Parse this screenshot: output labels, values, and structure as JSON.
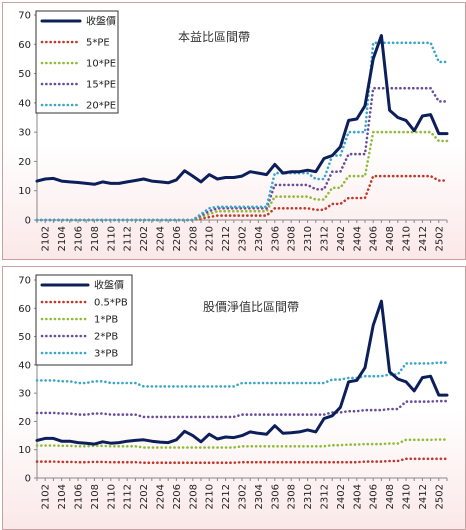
{
  "chart_data": [
    {
      "type": "line",
      "title": "本益比區間帶",
      "x": [
        "2101",
        "2102",
        "2103",
        "2104",
        "2105",
        "2106",
        "2107",
        "2108",
        "2109",
        "2110",
        "2111",
        "2112",
        "2201",
        "2202",
        "2203",
        "2204",
        "2205",
        "2206",
        "2207",
        "2208",
        "2209",
        "2210",
        "2211",
        "2212",
        "2301",
        "2302",
        "2303",
        "2304",
        "2305",
        "2306",
        "2307",
        "2308",
        "2309",
        "2310",
        "2311",
        "2312",
        "2401",
        "2402",
        "2403",
        "2404",
        "2405",
        "2406",
        "2407",
        "2408",
        "2409",
        "2410",
        "2411",
        "2412",
        "2501",
        "2502",
        "2503"
      ],
      "x_tick_labels": [
        "2102",
        "2104",
        "2106",
        "2108",
        "2110",
        "2112",
        "2202",
        "2204",
        "2206",
        "2208",
        "2210",
        "2212",
        "2302",
        "2304",
        "2306",
        "2308",
        "2310",
        "2312",
        "2402",
        "2404",
        "2406",
        "2408",
        "2410",
        "2412",
        "2502"
      ],
      "ylim": [
        0,
        70
      ],
      "yticks": [
        0,
        10,
        20,
        30,
        40,
        50,
        60,
        70
      ],
      "legend_placement": "top-left",
      "series": [
        {
          "name": "收盤價",
          "color": "#0c1f5a",
          "style": "solid",
          "values": [
            13.3,
            14,
            14.2,
            13.3,
            13,
            12.8,
            12.5,
            12.2,
            13,
            12.5,
            12.5,
            13,
            13.5,
            14,
            13.3,
            13,
            12.7,
            13.7,
            16.8,
            15,
            13,
            15.5,
            14,
            14.5,
            14.5,
            15,
            16.5,
            16,
            15.5,
            19,
            16,
            16.5,
            16.5,
            17,
            16.5,
            21,
            22,
            25,
            34,
            34.5,
            39,
            55,
            63,
            37.5,
            35,
            34,
            30.5,
            35.5,
            36,
            29.5,
            29.5
          ]
        },
        {
          "name": "5*PE",
          "color": "#c0392b",
          "style": "dotted",
          "values": [
            0,
            0,
            0,
            0,
            0,
            0,
            0,
            0,
            0,
            0,
            0,
            0,
            0,
            0,
            0,
            0,
            0,
            0,
            0,
            0,
            0.5,
            1,
            1.5,
            1.5,
            1.5,
            1.5,
            1.5,
            1.5,
            1.5,
            4,
            4,
            4,
            4,
            4,
            3.5,
            3.5,
            5.5,
            5.5,
            7.5,
            7.5,
            7.5,
            15,
            15,
            15,
            15,
            15,
            15,
            15,
            15,
            13.5,
            13.5
          ]
        },
        {
          "name": "10*PE",
          "color": "#8fbc3a",
          "style": "dotted",
          "values": [
            0,
            0,
            0,
            0,
            0,
            0,
            0,
            0,
            0,
            0,
            0,
            0,
            0,
            0,
            0,
            0,
            0,
            0,
            0,
            0,
            1,
            2,
            3,
            3,
            3,
            3,
            3,
            3,
            3,
            8,
            8,
            8,
            8,
            8,
            7,
            7,
            11,
            11,
            15,
            15,
            15,
            30,
            30,
            30,
            30,
            30,
            30,
            30,
            30,
            27,
            27
          ]
        },
        {
          "name": "15*PE",
          "color": "#6b4c9a",
          "style": "dotted",
          "values": [
            0,
            0,
            0,
            0,
            0,
            0,
            0,
            0,
            0,
            0,
            0,
            0,
            0,
            0,
            0,
            0,
            0,
            0,
            0,
            0,
            1.5,
            3,
            4,
            4,
            4,
            4,
            4,
            4,
            4,
            12,
            12,
            12,
            12,
            12,
            10.5,
            10.5,
            16.5,
            16.5,
            22.5,
            22.5,
            22.5,
            45,
            45,
            45,
            45,
            45,
            45,
            45,
            45,
            40.5,
            40.5
          ]
        },
        {
          "name": "20*PE",
          "color": "#3aa6c8",
          "style": "dotted",
          "values": [
            0,
            0,
            0,
            0,
            0,
            0,
            0,
            0,
            0,
            0,
            0,
            0,
            0,
            0,
            0,
            0,
            0,
            0,
            0,
            0,
            2,
            4,
            4.5,
            4.5,
            4.5,
            4.5,
            4.5,
            4.5,
            4.5,
            16,
            16,
            16,
            16,
            16,
            14,
            14,
            22,
            22,
            30,
            30,
            30,
            60.5,
            60.5,
            60.5,
            60.5,
            60.5,
            60.5,
            60.5,
            60.5,
            54,
            54
          ]
        }
      ]
    },
    {
      "type": "line",
      "title": "股價淨值比區間帶",
      "x": [
        "2101",
        "2102",
        "2103",
        "2104",
        "2105",
        "2106",
        "2107",
        "2108",
        "2109",
        "2110",
        "2111",
        "2112",
        "2201",
        "2202",
        "2203",
        "2204",
        "2205",
        "2206",
        "2207",
        "2208",
        "2209",
        "2210",
        "2211",
        "2212",
        "2301",
        "2302",
        "2303",
        "2304",
        "2305",
        "2306",
        "2307",
        "2308",
        "2309",
        "2310",
        "2311",
        "2312",
        "2401",
        "2402",
        "2403",
        "2404",
        "2405",
        "2406",
        "2407",
        "2408",
        "2409",
        "2410",
        "2411",
        "2412",
        "2501",
        "2502",
        "2503"
      ],
      "x_tick_labels": [
        "2102",
        "2104",
        "2106",
        "2108",
        "2110",
        "2112",
        "2202",
        "2204",
        "2206",
        "2208",
        "2210",
        "2212",
        "2302",
        "2304",
        "2306",
        "2308",
        "2310",
        "2312",
        "2402",
        "2404",
        "2406",
        "2408",
        "2410",
        "2412",
        "2502"
      ],
      "ylim": [
        0,
        70
      ],
      "yticks": [
        0,
        10,
        20,
        30,
        40,
        50,
        60,
        70
      ],
      "legend_placement": "top-left",
      "series": [
        {
          "name": "收盤價",
          "color": "#0c1f5a",
          "style": "solid",
          "values": [
            13.3,
            14,
            14,
            13,
            13,
            12.5,
            12.3,
            12,
            12.8,
            12.3,
            12.5,
            13,
            13.3,
            13.5,
            13,
            12.7,
            12.5,
            13.5,
            16.5,
            15,
            12.8,
            15.5,
            13.8,
            14.5,
            14.3,
            15,
            16.3,
            15.8,
            15.5,
            18.5,
            15.8,
            16,
            16.3,
            17,
            16.3,
            21,
            22,
            25,
            34,
            34.5,
            39,
            54,
            62.5,
            37.5,
            35,
            34,
            30.8,
            35.5,
            36,
            29.3,
            29.3
          ]
        },
        {
          "name": "0.5*PB",
          "color": "#c0392b",
          "style": "dotted",
          "values": [
            5.8,
            5.8,
            5.8,
            5.7,
            5.7,
            5.6,
            5.6,
            5.7,
            5.7,
            5.6,
            5.6,
            5.6,
            5.6,
            5.4,
            5.4,
            5.4,
            5.4,
            5.4,
            5.4,
            5.4,
            5.4,
            5.4,
            5.4,
            5.4,
            5.4,
            5.6,
            5.6,
            5.6,
            5.6,
            5.6,
            5.6,
            5.6,
            5.6,
            5.6,
            5.6,
            5.6,
            5.6,
            5.6,
            5.6,
            5.6,
            5.8,
            5.8,
            5.8,
            6,
            6,
            6.8,
            6.8,
            6.8,
            6.8,
            6.8,
            6.8
          ]
        },
        {
          "name": "1*PB",
          "color": "#8fbc3a",
          "style": "dotted",
          "values": [
            11.5,
            11.5,
            11.5,
            11.4,
            11.4,
            11.2,
            11.2,
            11.4,
            11.4,
            11.2,
            11.2,
            11.2,
            11.2,
            10.8,
            10.8,
            10.8,
            10.8,
            10.8,
            10.8,
            10.8,
            10.8,
            10.8,
            10.8,
            10.8,
            10.8,
            11.2,
            11.2,
            11.2,
            11.2,
            11.2,
            11.2,
            11.2,
            11.2,
            11.2,
            11.2,
            11.2,
            11.6,
            11.6,
            11.8,
            11.8,
            12,
            12,
            12,
            12.2,
            12.2,
            13.5,
            13.5,
            13.5,
            13.5,
            13.6,
            13.6
          ]
        },
        {
          "name": "2*PB",
          "color": "#6b4c9a",
          "style": "dotted",
          "values": [
            23,
            23,
            23,
            22.8,
            22.8,
            22.4,
            22.4,
            22.8,
            22.8,
            22.4,
            22.4,
            22.4,
            22.4,
            21.6,
            21.6,
            21.6,
            21.6,
            21.6,
            21.6,
            21.6,
            21.6,
            21.6,
            21.6,
            21.6,
            21.6,
            22.4,
            22.4,
            22.4,
            22.4,
            22.4,
            22.4,
            22.4,
            22.4,
            22.4,
            22.4,
            22.4,
            23.2,
            23.2,
            23.6,
            23.6,
            24,
            24,
            24,
            24.4,
            24.4,
            27,
            27,
            27,
            27,
            27.2,
            27.2
          ]
        },
        {
          "name": "3*PB",
          "color": "#3aa6c8",
          "style": "dotted",
          "values": [
            34.5,
            34.5,
            34.5,
            34.2,
            34.2,
            33.6,
            33.6,
            34.2,
            34.2,
            33.6,
            33.6,
            33.6,
            33.6,
            32.4,
            32.4,
            32.4,
            32.4,
            32.4,
            32.4,
            32.4,
            32.4,
            32.4,
            32.4,
            32.4,
            32.4,
            33.6,
            33.6,
            33.6,
            33.6,
            33.6,
            33.6,
            33.6,
            33.6,
            33.6,
            33.6,
            33.6,
            34.8,
            34.8,
            35.4,
            35.4,
            36,
            36,
            36,
            36.6,
            36.6,
            40.5,
            40.5,
            40.5,
            40.5,
            40.8,
            40.8
          ]
        }
      ]
    }
  ]
}
